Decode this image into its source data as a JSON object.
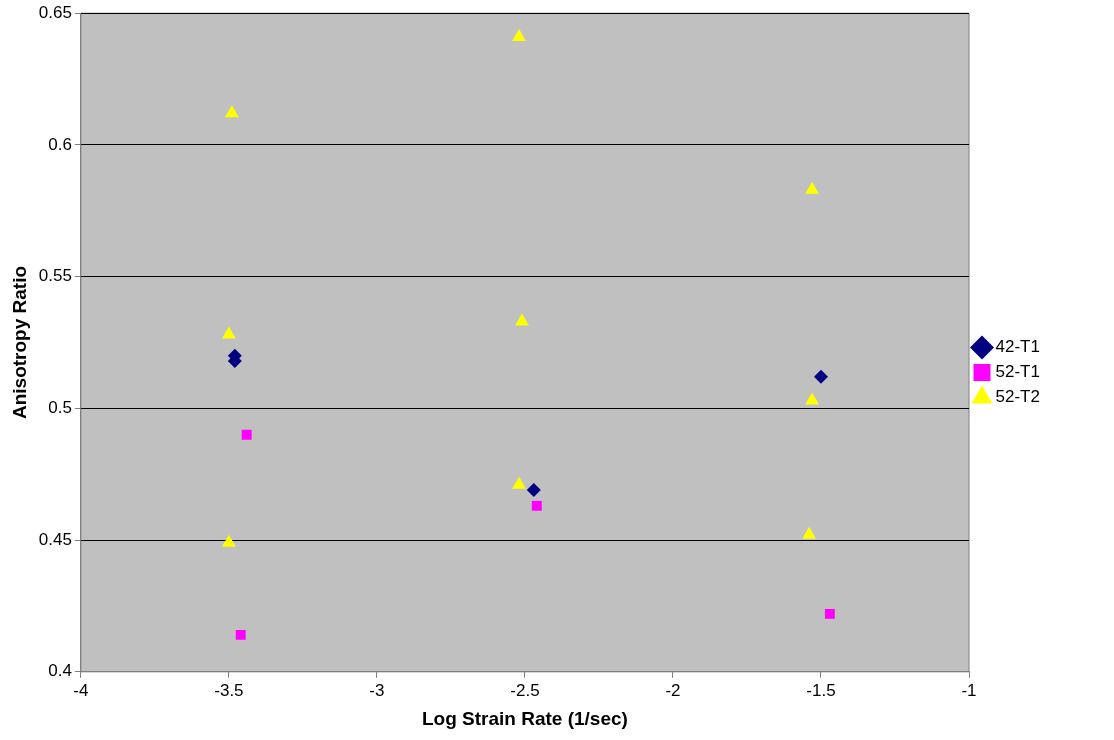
{
  "chart_data": {
    "type": "scatter",
    "xlabel": "Log Strain Rate (1/sec)",
    "ylabel": "Anisotropy Ratio",
    "xlim": [
      -4,
      -1
    ],
    "xticks": [
      -4,
      -3.5,
      -3,
      -2.5,
      -2,
      -1.5,
      -1
    ],
    "ylim": [
      0.4,
      0.65
    ],
    "yticks": [
      0.4,
      0.45,
      0.5,
      0.55,
      0.6,
      0.65
    ],
    "grid": "y",
    "legend": "right",
    "series": [
      {
        "name": "42-T1",
        "color": "#000080",
        "marker": "diamond",
        "x": [
          -3.48,
          -3.48,
          -2.47,
          -1.5
        ],
        "values": [
          0.52,
          0.518,
          0.469,
          0.512
        ]
      },
      {
        "name": "52-T1",
        "color": "#ff00ff",
        "marker": "square",
        "x": [
          -3.44,
          -3.46,
          -2.46,
          -1.47
        ],
        "values": [
          0.49,
          0.414,
          0.463,
          0.422
        ]
      },
      {
        "name": "52-T2",
        "color": "#ffff00",
        "marker": "triangle",
        "x": [
          -3.49,
          -2.52,
          -1.53,
          -3.5,
          -2.51,
          -1.53,
          -2.52,
          -3.5,
          -1.54
        ],
        "values": [
          0.612,
          0.641,
          0.583,
          0.528,
          0.533,
          0.503,
          0.471,
          0.449,
          0.452
        ]
      }
    ]
  }
}
